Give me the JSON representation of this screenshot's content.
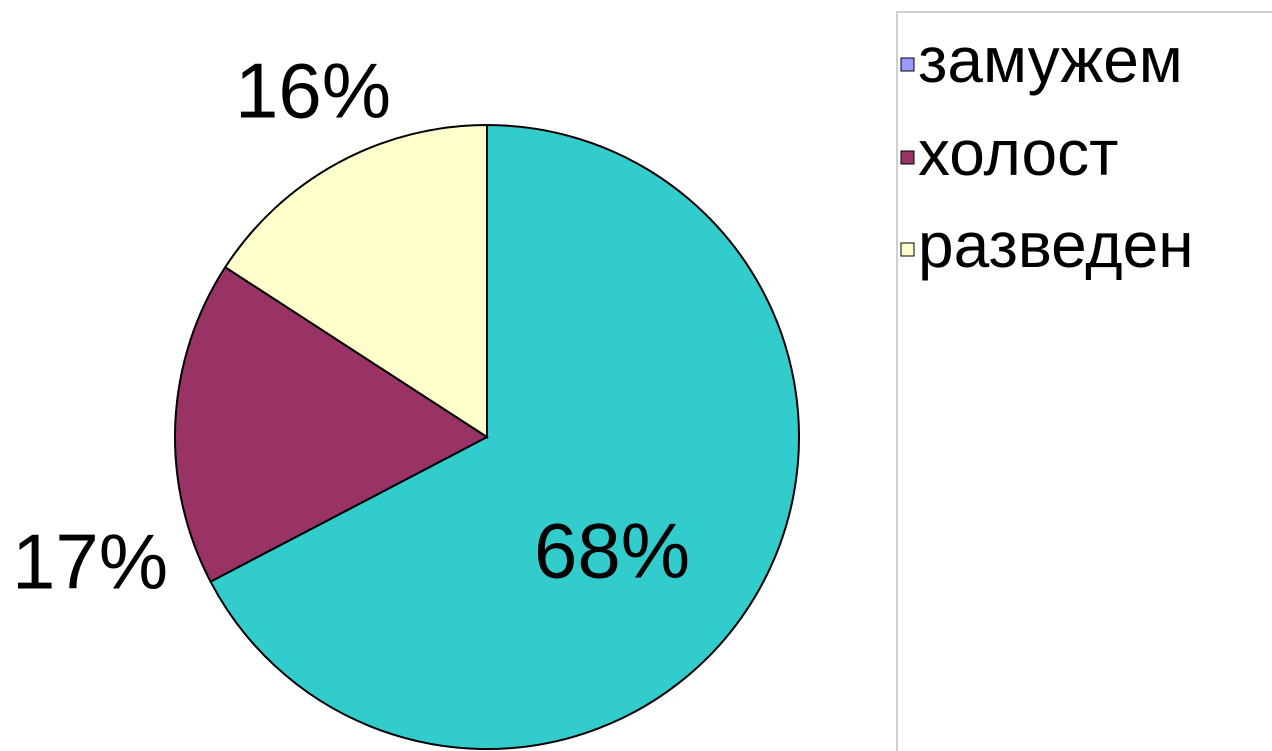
{
  "chart_data": {
    "type": "pie",
    "categories": [
      "замужем",
      "холост",
      "разведен"
    ],
    "values": [
      68,
      17,
      16
    ],
    "data_labels": [
      "68%",
      "17%",
      "16%"
    ],
    "colors": [
      "#33CCCC",
      "#993366",
      "#FFFFCC"
    ],
    "legend_marker_colors": [
      "#9999FF",
      "#993366",
      "#FFFFCC"
    ],
    "legend_position": "right",
    "title": ""
  }
}
